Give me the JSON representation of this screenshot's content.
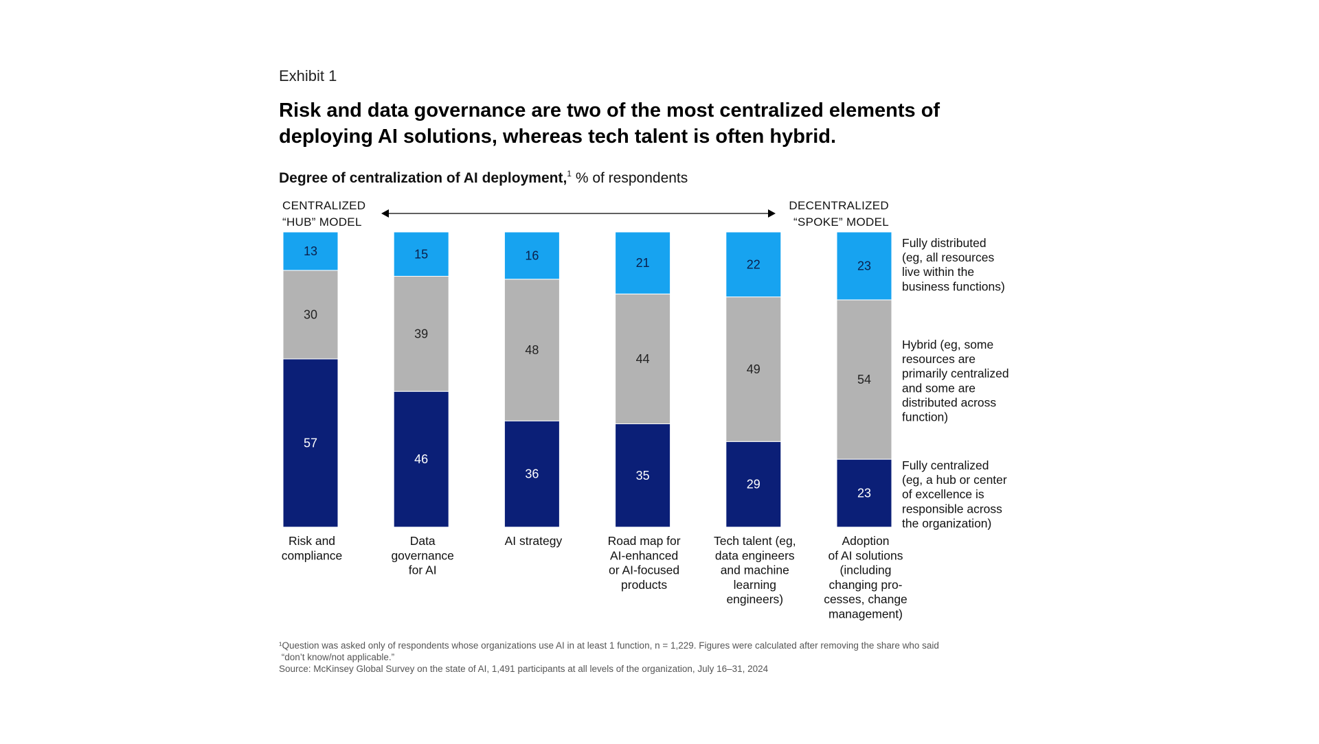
{
  "header": {
    "exhibit": "Exhibit 1",
    "title": "Risk and data governance are two of the most centralized elements of deploying AI solutions, whereas tech talent is often hybrid.",
    "subtitle_bold": "Degree of centralization of AI deployment,",
    "subtitle_sup": "1",
    "subtitle_rest": " % of respondents"
  },
  "scale": {
    "left_label": [
      "CENTRALIZED",
      "“HUB” MODEL"
    ],
    "right_label": [
      "DECENTRALIZED",
      "“SPOKE” MODEL"
    ]
  },
  "colors": {
    "fully_centralized": "#0b1f77",
    "hybrid": "#b3b3b3",
    "fully_distributed": "#17a3f0",
    "arrow": "#000000"
  },
  "chart_data": {
    "type": "bar",
    "stacked": true,
    "unit": "% of respondents",
    "categories": [
      [
        "Risk and",
        "compliance"
      ],
      [
        "Data",
        "governance",
        "for AI"
      ],
      [
        "AI strategy"
      ],
      [
        "Road map for",
        "AI-enhanced",
        "or AI-focused",
        "products"
      ],
      [
        "Tech talent (eg,",
        "data engineers",
        "and machine",
        "learning",
        "engineers)"
      ],
      [
        "Adoption",
        "of AI solutions",
        "(including",
        "changing pro-",
        "cesses, change",
        "management)"
      ]
    ],
    "series": [
      {
        "key": "fully_centralized",
        "values": [
          57,
          46,
          36,
          35,
          29,
          23
        ],
        "legend": [
          "Fully centralized",
          "(eg, a hub or center",
          "of excellence is",
          "responsible across",
          "the organization)"
        ]
      },
      {
        "key": "hybrid",
        "values": [
          30,
          39,
          48,
          44,
          49,
          54
        ],
        "legend": [
          "Hybrid (eg, some",
          "resources are",
          "primarily centralized",
          "and some are",
          "distributed across",
          "function)"
        ]
      },
      {
        "key": "fully_distributed",
        "values": [
          13,
          15,
          16,
          21,
          22,
          23
        ],
        "legend": [
          "Fully distributed",
          "(eg, all resources",
          "live within the",
          "business functions)"
        ]
      }
    ]
  },
  "footnotes": [
    "¹Question was asked only of respondents whose organizations use AI in at least 1 function, n = 1,229. Figures were calculated after removing the share who said",
    " “don’t know/not applicable.”",
    "Source: McKinsey Global Survey on the state of AI, 1,491 participants at all levels of the organization, July 16–31, 2024"
  ]
}
